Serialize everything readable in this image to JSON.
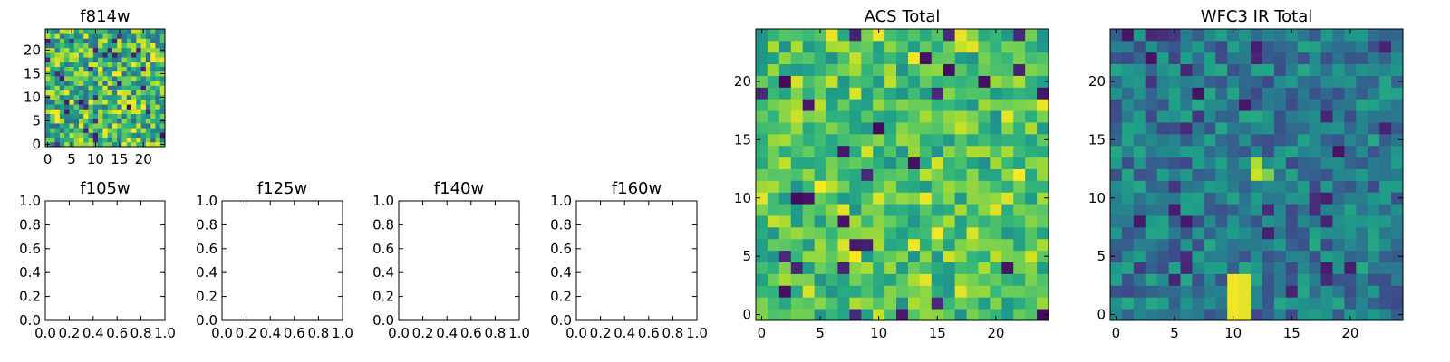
{
  "figure": {
    "title": ""
  },
  "chart_data": [
    {
      "id": "f814w",
      "type": "heatmap",
      "title": "f814w",
      "grid_size": [
        25,
        25
      ],
      "xlim": [
        -0.5,
        24.5
      ],
      "ylim": [
        -0.5,
        24.5
      ],
      "xticks": [
        0,
        5,
        10,
        15,
        20
      ],
      "yticks": [
        0,
        5,
        10,
        15,
        20
      ],
      "xlabel": "",
      "ylabel": "",
      "colormap": "viridis",
      "value_range": [
        0,
        1
      ],
      "seed": 814,
      "content": "random pixel intensities (noise); per-pixel values not recoverable"
    },
    {
      "id": "f105w",
      "type": "empty",
      "title": "f105w",
      "xlim": [
        0,
        1
      ],
      "ylim": [
        0,
        1
      ],
      "xticks": [
        "0.0",
        "0.2",
        "0.4",
        "0.6",
        "0.8",
        "1.0"
      ],
      "yticks": [
        "0.0",
        "0.2",
        "0.4",
        "0.6",
        "0.8",
        "1.0"
      ]
    },
    {
      "id": "f125w",
      "type": "empty",
      "title": "f125w",
      "xlim": [
        0,
        1
      ],
      "ylim": [
        0,
        1
      ],
      "xticks": [
        "0.0",
        "0.2",
        "0.4",
        "0.6",
        "0.8",
        "1.0"
      ],
      "yticks": [
        "0.0",
        "0.2",
        "0.4",
        "0.6",
        "0.8",
        "1.0"
      ]
    },
    {
      "id": "f140w",
      "type": "empty",
      "title": "f140w",
      "xlim": [
        0,
        1
      ],
      "ylim": [
        0,
        1
      ],
      "xticks": [
        "0.0",
        "0.2",
        "0.4",
        "0.6",
        "0.8",
        "1.0"
      ],
      "yticks": [
        "0.0",
        "0.2",
        "0.4",
        "0.6",
        "0.8",
        "1.0"
      ]
    },
    {
      "id": "f160w",
      "type": "empty",
      "title": "f160w",
      "xlim": [
        0,
        1
      ],
      "ylim": [
        0,
        1
      ],
      "xticks": [
        "0.0",
        "0.2",
        "0.4",
        "0.6",
        "0.8",
        "1.0"
      ],
      "yticks": [
        "0.0",
        "0.2",
        "0.4",
        "0.6",
        "0.8",
        "1.0"
      ]
    },
    {
      "id": "acs-total",
      "type": "heatmap",
      "title": "ACS Total",
      "grid_size": [
        25,
        25
      ],
      "xlim": [
        -0.5,
        24.5
      ],
      "ylim": [
        -0.5,
        24.5
      ],
      "xticks": [
        0,
        5,
        10,
        15,
        20
      ],
      "yticks": [
        0,
        5,
        10,
        15,
        20
      ],
      "xlabel": "",
      "ylabel": "",
      "colormap": "viridis",
      "value_range": [
        0,
        1
      ],
      "seed": 2717,
      "content": "random pixel intensities, mostly mid-to-high values; per-pixel values not recoverable"
    },
    {
      "id": "wfc3-ir-total",
      "type": "heatmap",
      "title": "WFC3 IR Total",
      "grid_size": [
        25,
        25
      ],
      "xlim": [
        -0.5,
        24.5
      ],
      "ylim": [
        -0.5,
        24.5
      ],
      "xticks": [
        0,
        5,
        10,
        15,
        20
      ],
      "yticks": [
        0,
        5,
        10,
        15,
        20
      ],
      "xlabel": "",
      "ylabel": "",
      "colormap": "viridis",
      "value_range": [
        0,
        1
      ],
      "seed": 3905,
      "content": "random pixel intensities, mostly mid values; bright pixels near (10-11, 0-3) and (12, 12-13); per-pixel values not recoverable"
    }
  ]
}
